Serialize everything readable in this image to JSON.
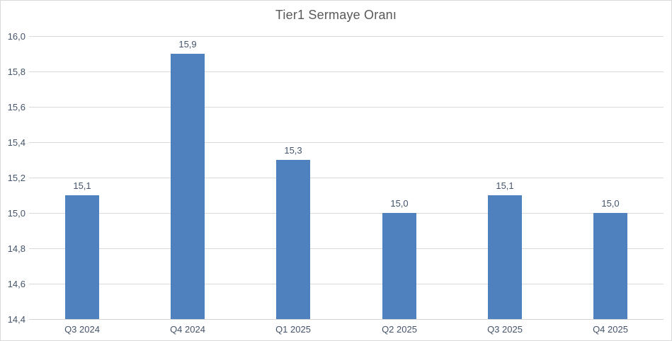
{
  "chart_data": {
    "type": "bar",
    "title": "Tier1 Sermaye Oranı",
    "categories": [
      "Q3 2024",
      "Q4 2024",
      "Q1 2025",
      "Q2 2025",
      "Q3 2025",
      "Q4 2025"
    ],
    "values": [
      15.1,
      15.9,
      15.3,
      15.0,
      15.1,
      15.0
    ],
    "data_labels": [
      "15,1",
      "15,9",
      "15,3",
      "15,0",
      "15,1",
      "15,0"
    ],
    "y_ticks": [
      {
        "value": 16.0,
        "label": "16,0"
      },
      {
        "value": 15.8,
        "label": "15,8"
      },
      {
        "value": 15.6,
        "label": "15,6"
      },
      {
        "value": 15.4,
        "label": "15,4"
      },
      {
        "value": 15.2,
        "label": "15,2"
      },
      {
        "value": 15.0,
        "label": "15,0"
      },
      {
        "value": 14.8,
        "label": "14,8"
      },
      {
        "value": 14.6,
        "label": "14,6"
      },
      {
        "value": 14.4,
        "label": "14,4"
      }
    ],
    "ylim": [
      14.4,
      16.0
    ],
    "xlabel": "",
    "ylabel": "",
    "grid": true,
    "legend": "none",
    "decimal_separator": ",",
    "colors": {
      "bar": "#4e81bd",
      "gridline": "#d9d9d9",
      "axis_line": "#d3d3d3",
      "chart_border": "#d9d9d9",
      "title_text": "#595959",
      "axis_text": "#44546a",
      "data_label_text": "#44546a",
      "background": "#ffffff"
    }
  }
}
